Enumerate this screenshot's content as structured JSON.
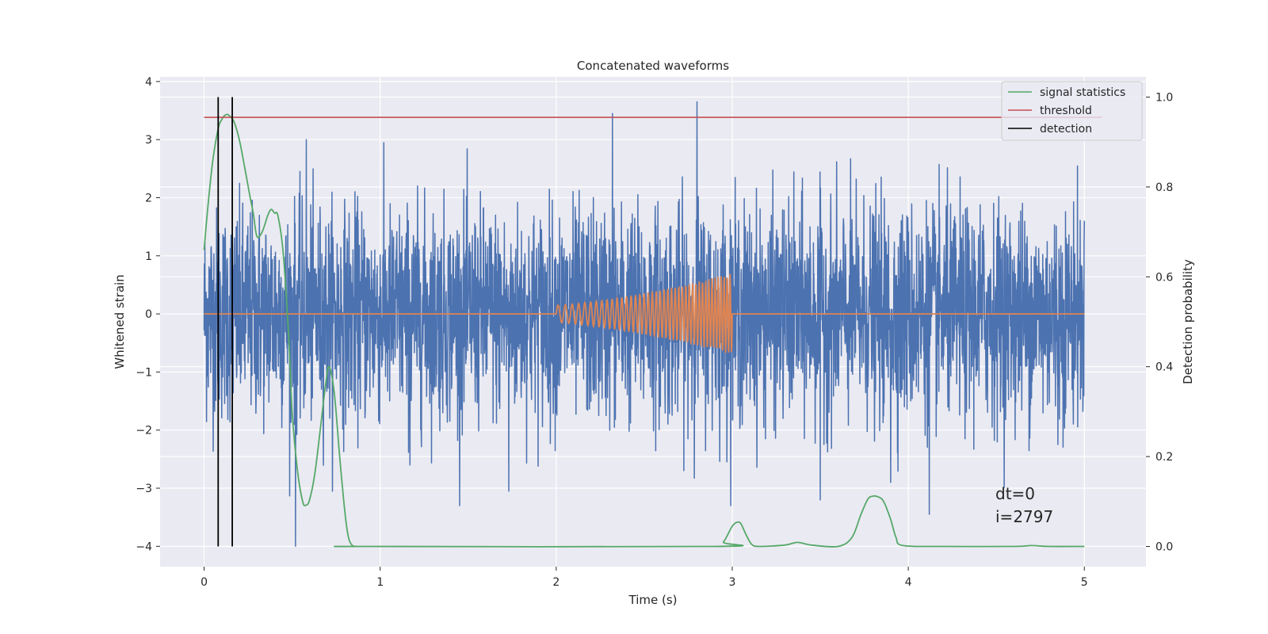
{
  "chart_data": {
    "type": "line",
    "title": "Concatenated waveforms",
    "xlabel": "Time (s)",
    "ylabel": "Whitened strain",
    "y2label": "Detection probability",
    "xlim": [
      -0.25,
      5.35
    ],
    "ylim": [
      -4.35,
      4.08
    ],
    "y2lim": [
      -0.045,
      1.045
    ],
    "xticks": [
      0,
      1,
      2,
      3,
      4,
      5
    ],
    "xtick_labels": [
      "0",
      "1",
      "2",
      "3",
      "4",
      "5"
    ],
    "yticks": [
      -4,
      -3,
      -2,
      -1,
      0,
      1,
      2,
      3,
      4
    ],
    "ytick_labels": [
      "−4",
      "−3",
      "−2",
      "−1",
      "0",
      "1",
      "2",
      "3",
      "4"
    ],
    "y2ticks": [
      0.0,
      0.2,
      0.4,
      0.6,
      0.8,
      1.0
    ],
    "y2tick_labels": [
      "0.0",
      "0.2",
      "0.4",
      "0.6",
      "0.8",
      "1.0"
    ],
    "grid": true,
    "legend_position": "top-right",
    "series": [
      {
        "kind": "noise",
        "color": "#4c72b0",
        "x_range": [
          0,
          5
        ],
        "spikes": [
          {
            "x": 0.52,
            "y": -4.0
          },
          {
            "x": 2.32,
            "y": 3.45
          },
          {
            "x": 2.8,
            "y": 3.65
          },
          {
            "x": 1.73,
            "y": -3.05
          },
          {
            "x": 3.5,
            "y": -3.2
          },
          {
            "x": 4.12,
            "y": -3.45
          },
          {
            "x": 0.58,
            "y": 3.0
          },
          {
            "x": 3.9,
            "y": -2.9
          },
          {
            "x": 1.17,
            "y": -2.6
          },
          {
            "x": 4.85,
            "y": -2.25
          }
        ]
      },
      {
        "kind": "chirp",
        "color": "#dd8452",
        "x_range": [
          0,
          5
        ],
        "chirp_start": 2.0,
        "chirp_end": 3.0,
        "amp_start": 0.15,
        "amp_end": 0.7,
        "cycles": 42
      },
      {
        "name": "signal statistics",
        "kind": "probability",
        "color": "#55a868",
        "x": [
          0,
          0.02,
          0.05,
          0.08,
          0.1,
          0.12,
          0.14,
          0.17,
          0.2,
          0.23,
          0.26,
          0.28,
          0.3,
          0.33,
          0.36,
          0.38,
          0.4,
          0.42,
          0.45,
          0.48,
          0.5,
          0.53,
          0.56,
          0.58,
          0.6,
          0.63,
          0.66,
          0.69,
          0.71,
          0.74,
          0.77,
          0.8,
          0.82,
          0.84,
          0.86,
          0.9,
          2.9,
          2.95,
          3.0,
          3.03,
          3.05,
          3.08,
          3.11,
          3.15,
          3.3,
          3.37,
          3.45,
          3.6,
          3.68,
          3.73,
          3.77,
          3.8,
          3.83,
          3.86,
          3.9,
          3.93,
          3.97,
          4.2,
          4.6,
          4.7,
          4.8,
          5.0
        ],
        "values": [
          0.66,
          0.75,
          0.86,
          0.93,
          0.95,
          0.96,
          0.96,
          0.945,
          0.905,
          0.845,
          0.78,
          0.74,
          0.69,
          0.7,
          0.735,
          0.75,
          0.742,
          0.735,
          0.65,
          0.47,
          0.3,
          0.17,
          0.1,
          0.092,
          0.105,
          0.165,
          0.26,
          0.36,
          0.4,
          0.34,
          0.2,
          0.075,
          0.02,
          0.003,
          0.0,
          0.0,
          0.0,
          0.01,
          0.045,
          0.054,
          0.05,
          0.025,
          0.005,
          0.0,
          0.003,
          0.009,
          0.003,
          0.0,
          0.02,
          0.07,
          0.105,
          0.112,
          0.11,
          0.1,
          0.06,
          0.02,
          0.002,
          0.0,
          0.0,
          0.002,
          0.0,
          0.0
        ]
      },
      {
        "name": "threshold",
        "kind": "threshold",
        "color": "#c44e52",
        "y": 0.955,
        "x_range": [
          0,
          5.1
        ]
      },
      {
        "name": "detection",
        "kind": "detection",
        "color": "#000000",
        "x": [
          0.08,
          0.16
        ],
        "y_range": [
          0.0,
          1.0
        ]
      }
    ],
    "annotations": [
      "dt=0",
      "i=2797"
    ]
  }
}
